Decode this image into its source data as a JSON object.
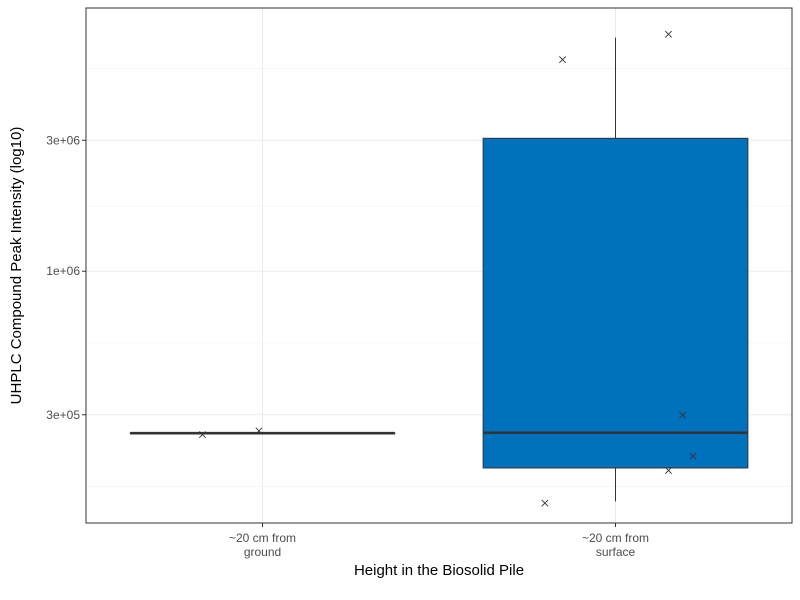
{
  "chart_data": {
    "type": "box",
    "xlabel": "Height in the Biosolid Pile",
    "ylabel": "UHPLC Compound Peak Intensity (log10)",
    "y_scale": "log10",
    "ylim": [
      121000,
      9100000
    ],
    "y_ticks": [
      {
        "value": 300000,
        "label": "3e+05"
      },
      {
        "value": 1000000,
        "label": "1e+06"
      },
      {
        "value": 3000000,
        "label": "3e+06"
      }
    ],
    "grid": true,
    "categories": [
      {
        "label_lines": [
          "~20 cm from",
          "ground"
        ]
      },
      {
        "label_lines": [
          "~20 cm from",
          "surface"
        ]
      }
    ],
    "boxes": [
      {
        "fill": "#ffffff",
        "min": 257000,
        "q1": 257000,
        "median": 257000,
        "q3": 257000,
        "max": 257000,
        "points": [
          {
            "x_offset": -0.17,
            "y": 254000
          },
          {
            "x_offset": -0.01,
            "y": 262000
          }
        ]
      },
      {
        "fill": "#0072bd",
        "min": 145000,
        "q1": 192000,
        "median": 258000,
        "q3": 3050000,
        "max": 7100000,
        "points": [
          {
            "x_offset": -0.2,
            "y": 143000
          },
          {
            "x_offset": -0.15,
            "y": 5900000
          },
          {
            "x_offset": 0.15,
            "y": 7300000
          },
          {
            "x_offset": 0.15,
            "y": 188000
          },
          {
            "x_offset": 0.19,
            "y": 299000
          },
          {
            "x_offset": 0.22,
            "y": 212000
          }
        ]
      }
    ]
  }
}
